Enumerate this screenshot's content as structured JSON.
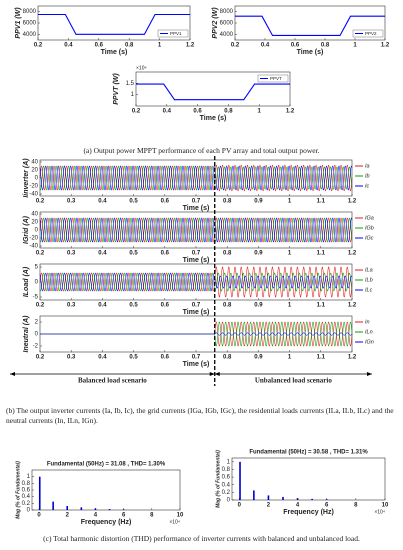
{
  "chart_data": [
    {
      "type": "line",
      "ylabel": "PPV1 (W)",
      "xlabel": "Time (s)",
      "xlim": [
        0.2,
        1.2
      ],
      "xticks": [
        0.2,
        0.4,
        0.6,
        0.8,
        1,
        1.2
      ],
      "ylim": [
        3000,
        9000
      ],
      "yticks": [
        4000,
        6000,
        8000
      ],
      "legend": "lower right",
      "series": [
        {
          "name": "PPV1",
          "color": "#0000ff",
          "x": [
            0.2,
            0.38,
            0.45,
            0.9,
            0.97,
            1.2
          ],
          "values": [
            7500,
            7500,
            4000,
            4000,
            7500,
            7500
          ]
        }
      ]
    },
    {
      "type": "line",
      "ylabel": "PPV2 (W)",
      "xlabel": "Time (s)",
      "xlim": [
        0.2,
        1.2
      ],
      "xticks": [
        0.2,
        0.4,
        0.6,
        0.8,
        1,
        1.2
      ],
      "ylim": [
        3000,
        9000
      ],
      "yticks": [
        4000,
        6000,
        8000
      ],
      "legend": "lower right",
      "series": [
        {
          "name": "PPV2",
          "color": "#0000ff",
          "x": [
            0.2,
            0.38,
            0.45,
            0.9,
            0.97,
            1.2
          ],
          "values": [
            7200,
            7200,
            3800,
            3800,
            7200,
            7200
          ]
        }
      ]
    },
    {
      "type": "line",
      "ylabel": "PPVT (W)",
      "xlabel": "Time (s)",
      "xlim": [
        0.2,
        1.2
      ],
      "xticks": [
        0.2,
        0.4,
        0.6,
        0.8,
        1,
        1.2
      ],
      "ylim": [
        5000,
        20000
      ],
      "yticks": [
        {
          "value": 10000,
          "label": "1"
        },
        {
          "value": 15000,
          "label": "1.5"
        }
      ],
      "axis_multiplier": "×10⁴",
      "legend": "upper right",
      "series": [
        {
          "name": "PPVT",
          "color": "#0000ff",
          "x": [
            0.2,
            0.38,
            0.45,
            0.9,
            0.97,
            1.2
          ],
          "values": [
            14700,
            14700,
            7800,
            7800,
            14700,
            14700
          ]
        }
      ]
    },
    {
      "type": "waveform",
      "ylabel": "Iinverter (A)",
      "xlabel": "Time (s)",
      "frequency": 50,
      "xlim": [
        0.2,
        1.2
      ],
      "xticks": [
        0.2,
        0.3,
        0.4,
        0.5,
        0.6,
        0.7,
        0.8,
        0.9,
        1,
        1.1,
        1.2
      ],
      "ylim": [
        -45,
        45
      ],
      "yticks": [
        -40,
        -20,
        0,
        20,
        40
      ],
      "series": [
        {
          "name": "Ia",
          "color": "#e41a1c",
          "phase": 0,
          "x": [
            0.2,
            0.76
          ],
          "values": [
            30,
            32
          ]
        },
        {
          "name": "Ib",
          "color": "#00a000",
          "phase": -120,
          "x": [
            0.2,
            0.76
          ],
          "values": [
            30,
            28
          ]
        },
        {
          "name": "Ic",
          "color": "#0000ff",
          "phase": 120,
          "x": [
            0.2,
            0.76
          ],
          "values": [
            30,
            30
          ]
        }
      ]
    },
    {
      "type": "waveform",
      "ylabel": "IGrid (A)",
      "xlabel": "Time (s)",
      "frequency": 50,
      "xlim": [
        0.2,
        1.2
      ],
      "xticks": [
        0.2,
        0.3,
        0.4,
        0.5,
        0.6,
        0.7,
        0.8,
        0.9,
        1,
        1.1,
        1.2
      ],
      "ylim": [
        -45,
        45
      ],
      "yticks": [
        -40,
        -20,
        0,
        20,
        40
      ],
      "series": [
        {
          "name": "IGa",
          "color": "#e41a1c",
          "phase": 0,
          "x": [
            0.2,
            0.76
          ],
          "values": [
            30,
            30
          ]
        },
        {
          "name": "IGb",
          "color": "#00a000",
          "phase": -120,
          "x": [
            0.2,
            0.76
          ],
          "values": [
            30,
            30
          ]
        },
        {
          "name": "IGc",
          "color": "#0000ff",
          "phase": 120,
          "x": [
            0.2,
            0.76
          ],
          "values": [
            30,
            30
          ]
        }
      ]
    },
    {
      "type": "waveform",
      "ylabel": "ILoad (A)",
      "xlabel": "Time (s)",
      "frequency": 50,
      "xlim": [
        0.2,
        1.2
      ],
      "xticks": [
        0.2,
        0.3,
        0.4,
        0.5,
        0.6,
        0.7,
        0.8,
        0.9,
        1,
        1.1,
        1.2
      ],
      "ylim": [
        -6,
        6
      ],
      "yticks": [
        -5,
        0,
        5
      ],
      "series": [
        {
          "name": "ILa",
          "color": "#e41a1c",
          "phase": 0,
          "x": [
            0.2,
            0.76
          ],
          "values": [
            3,
            5
          ]
        },
        {
          "name": "ILb",
          "color": "#00a000",
          "phase": -120,
          "x": [
            0.2,
            0.76
          ],
          "values": [
            3,
            3
          ]
        },
        {
          "name": "ILc",
          "color": "#0000ff",
          "phase": 120,
          "x": [
            0.2,
            0.76
          ],
          "values": [
            3,
            2
          ]
        }
      ]
    },
    {
      "type": "waveform",
      "ylabel": "Ineutral (A)",
      "xlabel": "Time (s)",
      "frequency": 50,
      "xlim": [
        0.2,
        1.2
      ],
      "xticks": [
        0.2,
        0.3,
        0.4,
        0.5,
        0.6,
        0.7,
        0.8,
        0.9,
        1,
        1.1,
        1.2
      ],
      "ylim": [
        -3,
        3
      ],
      "yticks": [
        -2,
        0,
        2
      ],
      "series": [
        {
          "name": "In",
          "color": "#e41a1c",
          "phase": 0,
          "x": [
            0.2,
            0.76
          ],
          "values": [
            0,
            2
          ]
        },
        {
          "name": "ILn",
          "color": "#00a000",
          "phase": 180,
          "x": [
            0.2,
            0.76
          ],
          "values": [
            0,
            2
          ]
        },
        {
          "name": "IGn",
          "color": "#0000ff",
          "phase": 0,
          "x": [
            0.2,
            0.76
          ],
          "values": [
            0,
            0.2
          ]
        }
      ]
    },
    {
      "type": "stem",
      "title": "Fundamental (50Hz) = 31.08 , THD= 1.30%",
      "ylabel": "Mag (% of Fundamental)",
      "xlabel": "Frequency (Hz)",
      "axis_multiplier": "×10⁴",
      "xlim": [
        -0.5,
        10
      ],
      "xticks": [
        0,
        2,
        4,
        6,
        8,
        10
      ],
      "ylim": [
        0,
        1.2
      ],
      "yticks": [
        0,
        0.2,
        0.4,
        0.6,
        0.8,
        1
      ],
      "color": "#0000cc",
      "x": [
        0.05,
        1,
        2,
        3,
        4,
        5,
        6
      ],
      "values": [
        1,
        0.25,
        0.12,
        0.08,
        0.05,
        0.03,
        0.02
      ]
    },
    {
      "type": "stem",
      "title": "Fundamental (50Hz) = 30.58 , THD= 1.31%",
      "ylabel": "Mag (% of Fundamental)",
      "xlabel": "Frequency (Hz)",
      "axis_multiplier": "×10⁴",
      "xlim": [
        -0.5,
        10
      ],
      "xticks": [
        0,
        2,
        4,
        6,
        8,
        10
      ],
      "ylim": [
        0,
        1.1
      ],
      "yticks": [
        0,
        0.2,
        0.4,
        0.6,
        0.8,
        1
      ],
      "color": "#0000cc",
      "x": [
        0.05,
        1,
        2,
        3,
        4,
        5,
        6
      ],
      "values": [
        1,
        0.25,
        0.12,
        0.08,
        0.05,
        0.03,
        0.02
      ]
    }
  ],
  "scenario_divider": {
    "x": 0.76,
    "labels": [
      "Balanced load scenario",
      "Unbalanced load scenario"
    ]
  },
  "captions": [
    "(a) Output power MPPT performance of each PV array and total output power.",
    "(b) The output inverter currents (Ia, Ib, Ic), the grid currents (IGa, IGb, IGc), the residential loads currents (ILa, ILb, ILc) and the neutral currents (In, ILn, IGn).",
    "(c) Total harmonic distortion (THD) performance of inverter currents with balanced and unbalanced load."
  ]
}
